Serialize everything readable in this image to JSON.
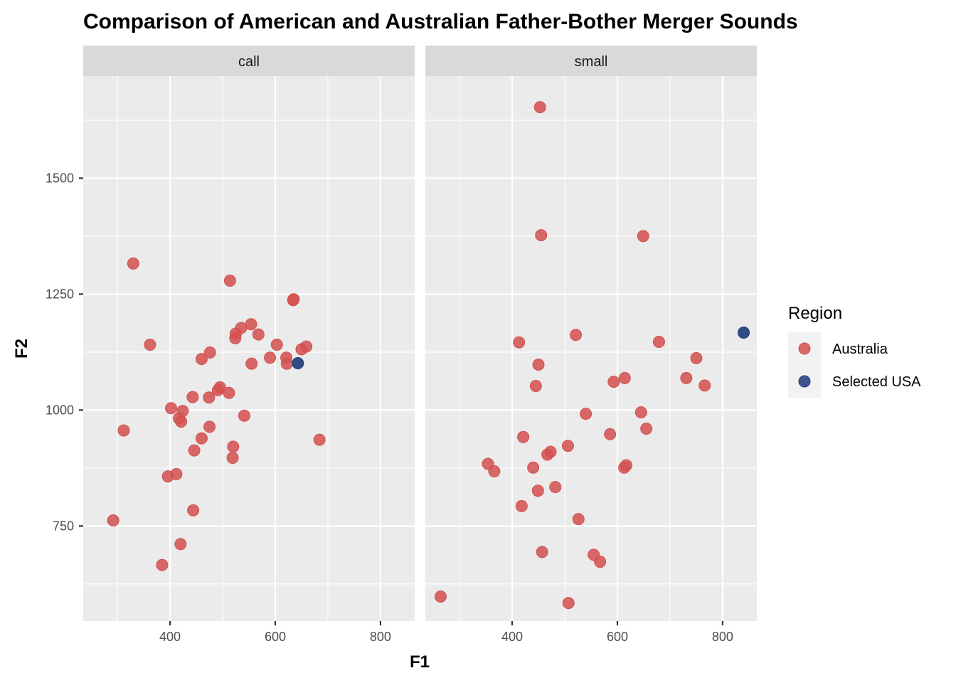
{
  "chart_data": {
    "type": "scatter",
    "title": "Comparison of American and Australian Father-Bother Merger Sounds",
    "xlabel": "F1",
    "ylabel": "F2",
    "xlim": [
      235,
      865
    ],
    "ylim": [
      545,
      1720
    ],
    "x_ticks": [
      400,
      600,
      800
    ],
    "y_ticks": [
      750,
      1000,
      1250,
      1500
    ],
    "x_ticks_minor": [
      300,
      500,
      700
    ],
    "y_ticks_minor": [
      625,
      875,
      1125,
      1375,
      1625
    ],
    "legend": {
      "title": "Region",
      "position": "right",
      "entries": [
        {
          "label": "Australia",
          "color": "#d45050"
        },
        {
          "label": "Selected USA",
          "color": "#1f3a7a"
        }
      ]
    },
    "grid": true,
    "facets": [
      {
        "label": "call",
        "series": [
          {
            "name": "Australia",
            "color": "#d45050",
            "points": [
              [
                330,
                1316
              ],
              [
                292,
                762
              ],
              [
                312,
                956
              ],
              [
                362,
                1141
              ],
              [
                385,
                666
              ],
              [
                396,
                857
              ],
              [
                402,
                1004
              ],
              [
                412,
                862
              ],
              [
                417,
                982
              ],
              [
                420,
                711
              ],
              [
                421,
                975
              ],
              [
                424,
                998
              ],
              [
                443,
                1028
              ],
              [
                444,
                784
              ],
              [
                446,
                913
              ],
              [
                460,
                939
              ],
              [
                460,
                1110
              ],
              [
                474,
                1027
              ],
              [
                475,
                964
              ],
              [
                476,
                1124
              ],
              [
                491,
                1043
              ],
              [
                495,
                1049
              ],
              [
                512,
                1037
              ],
              [
                514,
                1279
              ],
              [
                519,
                897
              ],
              [
                520,
                921
              ],
              [
                524,
                1155
              ],
              [
                525,
                1165
              ],
              [
                535,
                1177
              ],
              [
                541,
                988
              ],
              [
                554,
                1185
              ],
              [
                555,
                1100
              ],
              [
                568,
                1163
              ],
              [
                590,
                1113
              ],
              [
                603,
                1141
              ],
              [
                621,
                1113
              ],
              [
                622,
                1100
              ],
              [
                634,
                1237
              ],
              [
                635,
                1239
              ],
              [
                650,
                1131
              ],
              [
                659,
                1137
              ],
              [
                684,
                936
              ]
            ]
          },
          {
            "name": "Selected USA",
            "color": "#1f3a7a",
            "points": [
              [
                643,
                1101
              ]
            ]
          }
        ]
      },
      {
        "label": "small",
        "series": [
          {
            "name": "Australia",
            "color": "#d45050",
            "points": [
              [
                264,
                598
              ],
              [
                354,
                884
              ],
              [
                366,
                868
              ],
              [
                413,
                1146
              ],
              [
                418,
                793
              ],
              [
                421,
                942
              ],
              [
                440,
                876
              ],
              [
                445,
                1052
              ],
              [
                449,
                826
              ],
              [
                450,
                1098
              ],
              [
                453,
                1653
              ],
              [
                455,
                1377
              ],
              [
                457,
                694
              ],
              [
                467,
                904
              ],
              [
                473,
                910
              ],
              [
                482,
                834
              ],
              [
                506,
                923
              ],
              [
                521,
                1162
              ],
              [
                526,
                765
              ],
              [
                540,
                992
              ],
              [
                555,
                688
              ],
              [
                567,
                673
              ],
              [
                586,
                948
              ],
              [
                593,
                1061
              ],
              [
                613,
                876
              ],
              [
                614,
                1069
              ],
              [
                617,
                881
              ],
              [
                645,
                995
              ],
              [
                649,
                1375
              ],
              [
                655,
                960
              ],
              [
                679,
                1147
              ],
              [
                731,
                1069
              ],
              [
                750,
                1112
              ],
              [
                766,
                1053
              ],
              [
                507,
                584
              ]
            ]
          },
          {
            "name": "Selected USA",
            "color": "#1f3a7a",
            "points": [
              [
                840,
                1167
              ]
            ]
          }
        ]
      }
    ]
  }
}
